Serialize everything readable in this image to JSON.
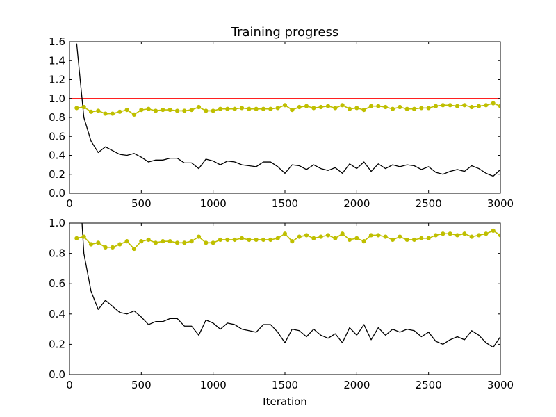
{
  "chart_data": [
    {
      "type": "line",
      "title": "Training progress",
      "xlabel": "",
      "ylabel": "",
      "xlim": [
        0,
        3000
      ],
      "ylim": [
        0,
        1.6
      ],
      "xticks": [
        "0",
        "500",
        "1000",
        "1500",
        "2000",
        "2500",
        "3000"
      ],
      "yticks": [
        "0.0",
        "0.2",
        "0.4",
        "0.6",
        "0.8",
        "1.0",
        "1.2",
        "1.4",
        "1.6"
      ],
      "grid": false,
      "reference_line": {
        "y": 1.0,
        "color": "#ff0000"
      },
      "series": [
        {
          "color": "#000000",
          "marker": "none",
          "x": [
            50,
            100,
            150,
            200,
            250,
            300,
            350,
            400,
            450,
            500,
            550,
            600,
            650,
            700,
            750,
            800,
            850,
            900,
            950,
            1000,
            1050,
            1100,
            1150,
            1200,
            1250,
            1300,
            1350,
            1400,
            1450,
            1500,
            1550,
            1600,
            1650,
            1700,
            1750,
            1800,
            1850,
            1900,
            1950,
            2000,
            2050,
            2100,
            2150,
            2200,
            2250,
            2300,
            2350,
            2400,
            2450,
            2500,
            2550,
            2600,
            2650,
            2700,
            2750,
            2800,
            2850,
            2900,
            2950,
            3000
          ],
          "values": [
            1.58,
            0.8,
            0.55,
            0.43,
            0.49,
            0.45,
            0.41,
            0.4,
            0.42,
            0.38,
            0.33,
            0.35,
            0.35,
            0.37,
            0.37,
            0.32,
            0.32,
            0.26,
            0.36,
            0.34,
            0.3,
            0.34,
            0.33,
            0.3,
            0.29,
            0.28,
            0.33,
            0.33,
            0.28,
            0.21,
            0.3,
            0.29,
            0.25,
            0.3,
            0.26,
            0.24,
            0.27,
            0.21,
            0.31,
            0.26,
            0.33,
            0.23,
            0.31,
            0.26,
            0.3,
            0.28,
            0.3,
            0.29,
            0.25,
            0.28,
            0.22,
            0.2,
            0.23,
            0.25,
            0.23,
            0.29,
            0.26,
            0.21,
            0.18,
            0.25
          ]
        },
        {
          "color": "#bfbf00",
          "marker": "circle",
          "x": [
            50,
            100,
            150,
            200,
            250,
            300,
            350,
            400,
            450,
            500,
            550,
            600,
            650,
            700,
            750,
            800,
            850,
            900,
            950,
            1000,
            1050,
            1100,
            1150,
            1200,
            1250,
            1300,
            1350,
            1400,
            1450,
            1500,
            1550,
            1600,
            1650,
            1700,
            1750,
            1800,
            1850,
            1900,
            1950,
            2000,
            2050,
            2100,
            2150,
            2200,
            2250,
            2300,
            2350,
            2400,
            2450,
            2500,
            2550,
            2600,
            2650,
            2700,
            2750,
            2800,
            2850,
            2900,
            2950,
            3000
          ],
          "values": [
            0.9,
            0.91,
            0.86,
            0.87,
            0.84,
            0.84,
            0.86,
            0.88,
            0.83,
            0.88,
            0.89,
            0.87,
            0.88,
            0.88,
            0.87,
            0.87,
            0.88,
            0.91,
            0.87,
            0.87,
            0.89,
            0.89,
            0.89,
            0.9,
            0.89,
            0.89,
            0.89,
            0.89,
            0.9,
            0.93,
            0.88,
            0.91,
            0.92,
            0.9,
            0.91,
            0.92,
            0.9,
            0.93,
            0.89,
            0.9,
            0.88,
            0.92,
            0.92,
            0.91,
            0.89,
            0.91,
            0.89,
            0.89,
            0.9,
            0.9,
            0.92,
            0.93,
            0.93,
            0.92,
            0.93,
            0.91,
            0.92,
            0.93,
            0.95,
            0.92
          ]
        }
      ]
    },
    {
      "type": "line",
      "title": "",
      "xlabel": "Iteration",
      "ylabel": "",
      "xlim": [
        0,
        3000
      ],
      "ylim": [
        0,
        1.0
      ],
      "xticks": [
        "0",
        "500",
        "1000",
        "1500",
        "2000",
        "2500",
        "3000"
      ],
      "yticks": [
        "0.0",
        "0.2",
        "0.4",
        "0.6",
        "0.8",
        "1.0"
      ],
      "grid": false,
      "series": [
        {
          "color": "#000000",
          "marker": "none",
          "x": [
            50,
            100,
            150,
            200,
            250,
            300,
            350,
            400,
            450,
            500,
            550,
            600,
            650,
            700,
            750,
            800,
            850,
            900,
            950,
            1000,
            1050,
            1100,
            1150,
            1200,
            1250,
            1300,
            1350,
            1400,
            1450,
            1500,
            1550,
            1600,
            1650,
            1700,
            1750,
            1800,
            1850,
            1900,
            1950,
            2000,
            2050,
            2100,
            2150,
            2200,
            2250,
            2300,
            2350,
            2400,
            2450,
            2500,
            2550,
            2600,
            2650,
            2700,
            2750,
            2800,
            2850,
            2900,
            2950,
            3000
          ],
          "values": [
            1.58,
            0.8,
            0.55,
            0.43,
            0.49,
            0.45,
            0.41,
            0.4,
            0.42,
            0.38,
            0.33,
            0.35,
            0.35,
            0.37,
            0.37,
            0.32,
            0.32,
            0.26,
            0.36,
            0.34,
            0.3,
            0.34,
            0.33,
            0.3,
            0.29,
            0.28,
            0.33,
            0.33,
            0.28,
            0.21,
            0.3,
            0.29,
            0.25,
            0.3,
            0.26,
            0.24,
            0.27,
            0.21,
            0.31,
            0.26,
            0.33,
            0.23,
            0.31,
            0.26,
            0.3,
            0.28,
            0.3,
            0.29,
            0.25,
            0.28,
            0.22,
            0.2,
            0.23,
            0.25,
            0.23,
            0.29,
            0.26,
            0.21,
            0.18,
            0.25
          ]
        },
        {
          "color": "#bfbf00",
          "marker": "circle",
          "x": [
            50,
            100,
            150,
            200,
            250,
            300,
            350,
            400,
            450,
            500,
            550,
            600,
            650,
            700,
            750,
            800,
            850,
            900,
            950,
            1000,
            1050,
            1100,
            1150,
            1200,
            1250,
            1300,
            1350,
            1400,
            1450,
            1500,
            1550,
            1600,
            1650,
            1700,
            1750,
            1800,
            1850,
            1900,
            1950,
            2000,
            2050,
            2100,
            2150,
            2200,
            2250,
            2300,
            2350,
            2400,
            2450,
            2500,
            2550,
            2600,
            2650,
            2700,
            2750,
            2800,
            2850,
            2900,
            2950,
            3000
          ],
          "values": [
            0.9,
            0.91,
            0.86,
            0.87,
            0.84,
            0.84,
            0.86,
            0.88,
            0.83,
            0.88,
            0.89,
            0.87,
            0.88,
            0.88,
            0.87,
            0.87,
            0.88,
            0.91,
            0.87,
            0.87,
            0.89,
            0.89,
            0.89,
            0.9,
            0.89,
            0.89,
            0.89,
            0.89,
            0.9,
            0.93,
            0.88,
            0.91,
            0.92,
            0.9,
            0.91,
            0.92,
            0.9,
            0.93,
            0.89,
            0.9,
            0.88,
            0.92,
            0.92,
            0.91,
            0.89,
            0.91,
            0.89,
            0.89,
            0.9,
            0.9,
            0.92,
            0.93,
            0.93,
            0.92,
            0.93,
            0.91,
            0.92,
            0.93,
            0.95,
            0.92
          ]
        }
      ]
    }
  ]
}
